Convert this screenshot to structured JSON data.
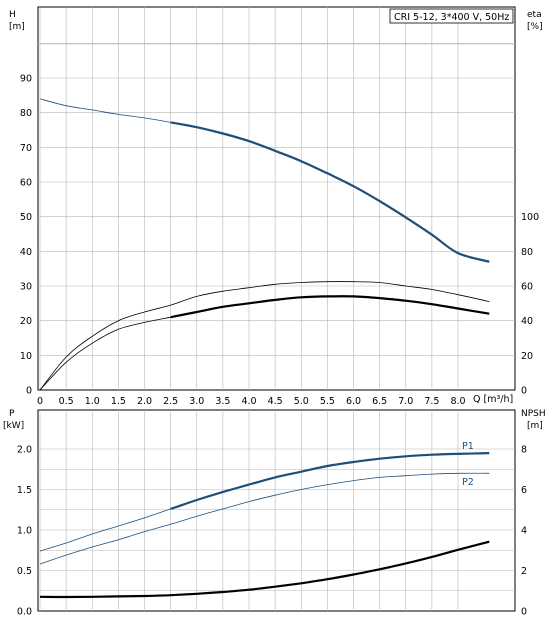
{
  "header": {
    "title": "CRI 5-12, 3*400 V, 50Hz"
  },
  "colors": {
    "grid": "#b8b8b8",
    "axis": "#000000",
    "h_curve": "#1f4e79",
    "eta_curve": "#000000",
    "p_curve": "#1f4e79",
    "npsh_curve": "#000000"
  },
  "chart_data": [
    {
      "type": "line",
      "xlabel": "Q [m³/h]",
      "xlim": [
        0,
        8.6
      ],
      "x_ticks": [
        "0",
        "0.5",
        "1.0",
        "1.5",
        "2.0",
        "2.5",
        "3.0",
        "3.5",
        "4.0",
        "4.5",
        "5.0",
        "5.5",
        "6.0",
        "6.5",
        "7.0",
        "7.5",
        "8.0"
      ],
      "left_axis": {
        "label": "H",
        "unit": "[m]",
        "lim": [
          0,
          100
        ],
        "ticks": [
          "0",
          "10",
          "20",
          "30",
          "40",
          "50",
          "60",
          "70",
          "80",
          "90"
        ]
      },
      "right_axis": {
        "label": "eta",
        "unit": "[%]",
        "lim": [
          0,
          200
        ],
        "ticks": [
          "0",
          "20",
          "40",
          "60",
          "80",
          "100"
        ]
      },
      "grid": true,
      "series": [
        {
          "name": "H",
          "axis": "left",
          "style": "thin",
          "x": [
            0,
            0.5,
            1.0,
            1.5,
            2.0,
            2.5
          ],
          "y": [
            84.0,
            82.0,
            80.8,
            79.5,
            78.5,
            77.2
          ]
        },
        {
          "name": "H",
          "axis": "left",
          "style": "bold",
          "x": [
            2.5,
            3.0,
            3.5,
            4.0,
            4.5,
            5.0,
            5.5,
            6.0,
            6.5,
            7.0,
            7.5,
            8.0,
            8.6
          ],
          "y": [
            77.2,
            75.8,
            74.0,
            71.8,
            69.0,
            66.0,
            62.5,
            58.8,
            54.5,
            49.8,
            44.8,
            39.5,
            37.0
          ]
        },
        {
          "name": "eta",
          "axis": "right",
          "style": "thin",
          "x": [
            0,
            0.5,
            1.0,
            1.5,
            2.0,
            2.5,
            3.0,
            3.5,
            4.0,
            4.5,
            5.0,
            5.5,
            6.0,
            6.5,
            7.0,
            7.5,
            8.0,
            8.6
          ],
          "y": [
            0,
            19,
            31,
            40,
            45,
            49,
            54,
            57,
            59,
            61,
            62,
            62.5,
            62.5,
            62,
            60,
            58,
            55,
            51
          ]
        },
        {
          "name": "eta",
          "axis": "right",
          "style": "thin",
          "x": [
            0,
            0.5,
            1.0,
            1.5,
            2.0,
            2.5
          ],
          "y": [
            0,
            16,
            27,
            35,
            39,
            42
          ]
        },
        {
          "name": "eta",
          "axis": "right",
          "style": "bold",
          "x": [
            2.5,
            3.0,
            3.5,
            4.0,
            4.5,
            5.0,
            5.5,
            6.0,
            6.5,
            7.0,
            7.5,
            8.0,
            8.6
          ],
          "y": [
            42,
            45,
            48,
            50,
            52,
            53.5,
            54,
            54,
            53,
            51.5,
            49.5,
            47,
            44
          ]
        }
      ]
    },
    {
      "type": "line",
      "left_axis": {
        "label": "P",
        "unit": "[kW]",
        "lim": [
          0,
          2.2
        ],
        "ticks": [
          "0.0",
          "0.5",
          "1.0",
          "1.5",
          "2.0"
        ]
      },
      "right_axis": {
        "label": "NPSH",
        "unit": "[m]",
        "lim": [
          0,
          8.8
        ],
        "ticks": [
          "0",
          "2",
          "4",
          "6",
          "8"
        ]
      },
      "xlim": [
        0,
        8.6
      ],
      "grid": true,
      "series": [
        {
          "name": "P1",
          "axis": "left",
          "style": "thin",
          "x": [
            0,
            0.5,
            1.0,
            1.5,
            2.0,
            2.5
          ],
          "y": [
            0.74,
            0.84,
            0.95,
            1.05,
            1.15,
            1.26
          ]
        },
        {
          "name": "P1",
          "axis": "left",
          "style": "bold",
          "x": [
            2.5,
            3.0,
            3.5,
            4.0,
            4.5,
            5.0,
            5.5,
            6.0,
            6.5,
            7.0,
            7.5,
            8.0,
            8.6
          ],
          "y": [
            1.26,
            1.37,
            1.47,
            1.56,
            1.65,
            1.72,
            1.79,
            1.84,
            1.88,
            1.91,
            1.93,
            1.94,
            1.95
          ]
        },
        {
          "name": "P2",
          "axis": "left",
          "style": "thin",
          "x": [
            0,
            0.5,
            1.0,
            1.5,
            2.0,
            2.5,
            3.0,
            3.5,
            4.0,
            4.5,
            5.0,
            5.5,
            6.0,
            6.5,
            7.0,
            7.5,
            8.0,
            8.6
          ],
          "y": [
            0.58,
            0.69,
            0.79,
            0.88,
            0.98,
            1.07,
            1.17,
            1.26,
            1.35,
            1.43,
            1.5,
            1.56,
            1.61,
            1.65,
            1.67,
            1.69,
            1.7,
            1.7
          ]
        },
        {
          "name": "NPSH",
          "axis": "right",
          "style": "bold",
          "x": [
            0,
            0.5,
            1.0,
            1.5,
            2.0,
            2.5,
            3.0,
            3.5,
            4.0,
            4.5,
            5.0,
            5.5,
            6.0,
            6.5,
            7.0,
            7.5,
            8.0,
            8.6
          ],
          "y": [
            0.7,
            0.69,
            0.7,
            0.72,
            0.74,
            0.78,
            0.85,
            0.94,
            1.05,
            1.2,
            1.37,
            1.57,
            1.8,
            2.06,
            2.35,
            2.67,
            3.02,
            3.42
          ]
        }
      ]
    }
  ]
}
